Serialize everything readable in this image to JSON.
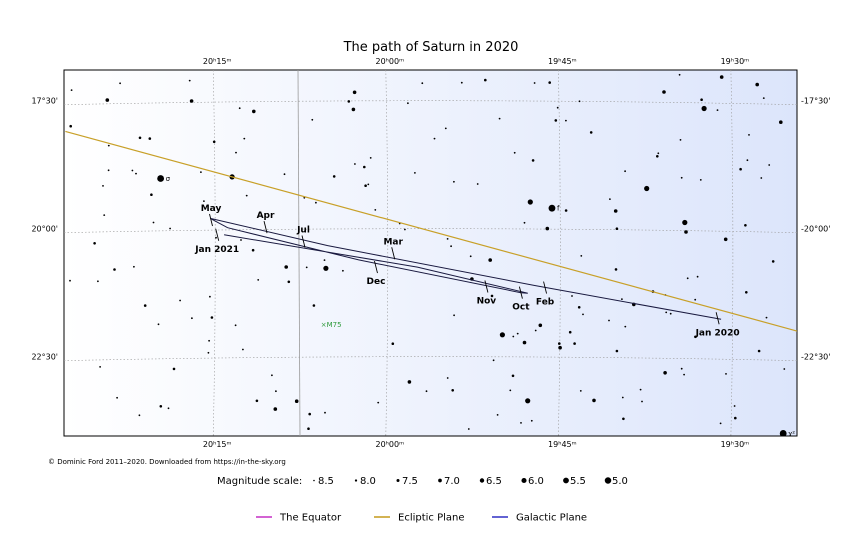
{
  "chart_data": {
    "type": "star-chart",
    "title": "The path of Saturn in 2020",
    "ra_ticks": [
      {
        "hours": 20.25,
        "label": "20ʰ15ᵐ"
      },
      {
        "hours": 20.0,
        "label": "20ʰ00ᵐ"
      },
      {
        "hours": 19.75,
        "label": "19ʰ45ᵐ"
      },
      {
        "hours": 19.5,
        "label": "19ʰ30ᵐ"
      }
    ],
    "dec_ticks": [
      {
        "deg": -17.5,
        "label_left": "17°30'",
        "label_right": "-17°30'"
      },
      {
        "deg": -20.0,
        "label_left": "20°00'",
        "label_right": "-20°00'"
      },
      {
        "deg": -22.5,
        "label_left": "22°30'",
        "label_right": "-22°30'"
      }
    ],
    "ra_range_hours": [
      20.472,
      19.41
    ],
    "dec_range_deg": [
      -16.9,
      -24.05
    ],
    "path": [
      {
        "ra": 19.52,
        "dec": -21.77
      },
      {
        "ra": 19.79,
        "dec": -21.11
      },
      {
        "ra": 20.09,
        "dec": -20.33
      },
      {
        "ra": 20.26,
        "dec": -19.8
      },
      {
        "ra": 20.235,
        "dec": -19.98
      },
      {
        "ra": 20.045,
        "dec": -20.61
      },
      {
        "ra": 19.81,
        "dec": -21.25
      },
      {
        "ra": 19.8,
        "dec": -21.26
      },
      {
        "ra": 19.96,
        "dec": -20.75
      },
      {
        "ra": 20.24,
        "dec": -20.12
      }
    ],
    "path_labels": [
      {
        "text": "Jan 2020",
        "ra": 19.525,
        "dec": -21.75,
        "pos": "below"
      },
      {
        "text": "Feb",
        "ra": 19.775,
        "dec": -21.15,
        "pos": "below"
      },
      {
        "text": "Mar",
        "ra": 19.995,
        "dec": -20.48,
        "pos": "above"
      },
      {
        "text": "Apr",
        "ra": 20.18,
        "dec": -19.97,
        "pos": "above"
      },
      {
        "text": "May",
        "ra": 20.259,
        "dec": -19.83,
        "pos": "above"
      },
      {
        "text": "Jul",
        "ra": 20.125,
        "dec": -20.25,
        "pos": "above"
      },
      {
        "text": "Dec",
        "ra": 20.02,
        "dec": -20.75,
        "pos": "below"
      },
      {
        "text": "Nov",
        "ra": 19.86,
        "dec": -21.13,
        "pos": "below"
      },
      {
        "text": "Oct",
        "ra": 19.81,
        "dec": -21.25,
        "pos": "below"
      },
      {
        "text": "Jan 2021",
        "ra": 20.25,
        "dec": -20.12,
        "pos": "below"
      }
    ],
    "ecliptic": [
      {
        "ra": 20.47,
        "dec": -18.1
      },
      {
        "ra": 19.41,
        "dec": -22.0
      }
    ],
    "named_stars": [
      {
        "label": "σ",
        "ra": 20.332,
        "dec": -19.02,
        "mag": 4.9
      },
      {
        "label": "f",
        "ra": 19.765,
        "dec": -19.6,
        "mag": 4.9
      },
      {
        "label": "χ²",
        "ra": 19.43,
        "dec": -24.0,
        "mag": 4.9
      }
    ],
    "deep_sky": [
      {
        "label": "×M75",
        "ra": 20.1,
        "dec": -21.92
      }
    ],
    "magnitude_scale": {
      "label": "Magnitude scale:",
      "entries": [
        "8.5",
        "8.0",
        "7.5",
        "7.0",
        "6.5",
        "6.0",
        "5.5",
        "5.0"
      ]
    },
    "legend": [
      {
        "label": "The Equator",
        "color": "#c83cc8"
      },
      {
        "label": "Ecliptic Plane",
        "color": "#c8a028"
      },
      {
        "label": "Galactic Plane",
        "color": "#3c3cc8"
      }
    ],
    "colors": {
      "sky_left": "#ffffff",
      "sky_right": "#dce5fb",
      "path": "#1a1a40",
      "ecliptic": "#c8a028",
      "deep_sky": "#2e9a3c"
    }
  },
  "footer": {
    "copyright": "© Dominic Ford 2011–2020. Downloaded from https://in-the-sky.org"
  }
}
